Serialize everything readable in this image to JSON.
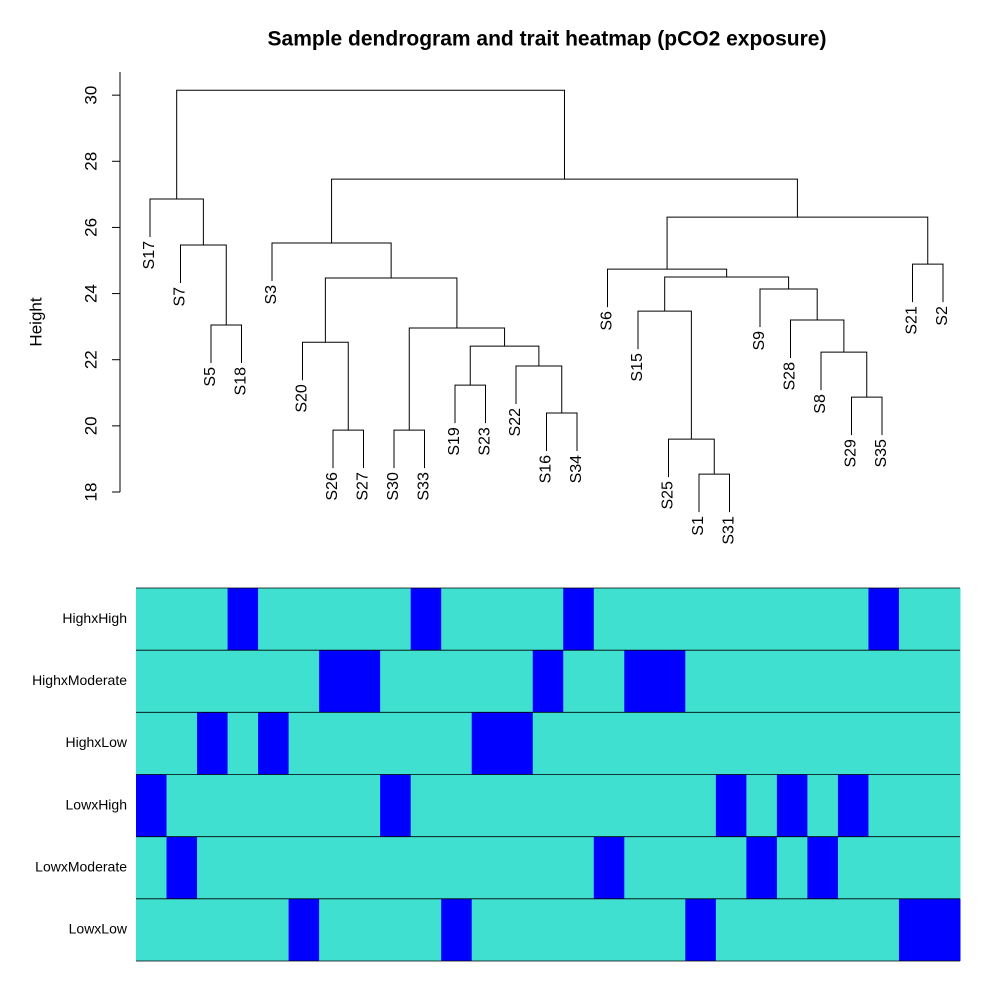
{
  "chart_data": [
    {
      "type": "dendrogram",
      "title": "Sample dendrogram and trait heatmap (pCO2 exposure)",
      "ylabel": "Height",
      "ylim": [
        18,
        30.7
      ],
      "yticks": [
        18,
        20,
        22,
        24,
        26,
        28,
        30
      ],
      "color": "#000000",
      "tree": {
        "height": 30.15,
        "children": [
          {
            "height": 26.86,
            "children": [
              {
                "label": "S17"
              },
              {
                "height": 25.47,
                "children": [
                  {
                    "label": "S7"
                  },
                  {
                    "height": 23.05,
                    "children": [
                      {
                        "label": "S5"
                      },
                      {
                        "label": "S18"
                      }
                    ]
                  }
                ]
              }
            ]
          },
          {
            "height": 27.46,
            "children": [
              {
                "height": 25.53,
                "children": [
                  {
                    "label": "S3"
                  },
                  {
                    "height": 24.47,
                    "children": [
                      {
                        "height": 22.53,
                        "children": [
                          {
                            "label": "S20"
                          },
                          {
                            "height": 19.87,
                            "children": [
                              {
                                "label": "S26"
                              },
                              {
                                "label": "S27"
                              }
                            ]
                          }
                        ]
                      },
                      {
                        "height": 22.96,
                        "children": [
                          {
                            "height": 19.87,
                            "children": [
                              {
                                "label": "S30"
                              },
                              {
                                "label": "S33"
                              }
                            ]
                          },
                          {
                            "height": 22.41,
                            "children": [
                              {
                                "height": 21.23,
                                "children": [
                                  {
                                    "label": "S19"
                                  },
                                  {
                                    "label": "S23"
                                  }
                                ]
                              },
                              {
                                "height": 21.81,
                                "children": [
                                  {
                                    "label": "S22"
                                  },
                                  {
                                    "height": 20.39,
                                    "children": [
                                      {
                                        "label": "S16"
                                      },
                                      {
                                        "label": "S34"
                                      }
                                    ]
                                  }
                                ]
                              }
                            ]
                          }
                        ]
                      }
                    ]
                  }
                ]
              },
              {
                "height": 26.31,
                "children": [
                  {
                    "height": 24.74,
                    "children": [
                      {
                        "label": "S6"
                      },
                      {
                        "height": 24.5,
                        "children": [
                          {
                            "height": 23.47,
                            "children": [
                              {
                                "label": "S15"
                              },
                              {
                                "height": 19.6,
                                "children": [
                                  {
                                    "label": "S25"
                                  },
                                  {
                                    "height": 18.54,
                                    "children": [
                                      {
                                        "label": "S1"
                                      },
                                      {
                                        "label": "S31"
                                      }
                                    ]
                                  }
                                ]
                              }
                            ]
                          },
                          {
                            "height": 24.14,
                            "children": [
                              {
                                "label": "S9"
                              },
                              {
                                "height": 23.2,
                                "children": [
                                  {
                                    "label": "S28"
                                  },
                                  {
                                    "height": 22.23,
                                    "children": [
                                      {
                                        "label": "S8"
                                      },
                                      {
                                        "height": 20.87,
                                        "children": [
                                          {
                                            "label": "S29"
                                          },
                                          {
                                            "label": "S35"
                                          }
                                        ]
                                      }
                                    ]
                                  }
                                ]
                              }
                            ]
                          }
                        ]
                      }
                    ]
                  },
                  {
                    "height": 24.89,
                    "children": [
                      {
                        "label": "S21"
                      },
                      {
                        "label": "S2"
                      }
                    ]
                  }
                ]
              }
            ]
          }
        ]
      }
    },
    {
      "type": "heatmap",
      "colors": [
        "#40E0D0",
        "#0000FF"
      ],
      "rows": [
        "HighxHigh",
        "HighxModerate",
        "HighxLow",
        "LowxHigh",
        "LowxModerate",
        "LowxLow"
      ],
      "values": [
        [
          0,
          0,
          0,
          1,
          0,
          0,
          0,
          0,
          0,
          1,
          0,
          0,
          0,
          0,
          1,
          0,
          0,
          0,
          0,
          0,
          0,
          0,
          0,
          0,
          1,
          0,
          0
        ],
        [
          0,
          0,
          0,
          0,
          0,
          0,
          1,
          1,
          0,
          0,
          0,
          0,
          0,
          1,
          0,
          0,
          1,
          1,
          0,
          0,
          0,
          0,
          0,
          0,
          0,
          0,
          0
        ],
        [
          0,
          0,
          1,
          0,
          1,
          0,
          0,
          0,
          0,
          0,
          0,
          1,
          1,
          0,
          0,
          0,
          0,
          0,
          0,
          0,
          0,
          0,
          0,
          0,
          0,
          0,
          0
        ],
        [
          1,
          0,
          0,
          0,
          0,
          0,
          0,
          0,
          1,
          0,
          0,
          0,
          0,
          0,
          0,
          0,
          0,
          0,
          0,
          1,
          0,
          1,
          0,
          1,
          0,
          0,
          0
        ],
        [
          0,
          1,
          0,
          0,
          0,
          0,
          0,
          0,
          0,
          0,
          0,
          0,
          0,
          0,
          0,
          1,
          0,
          0,
          0,
          0,
          1,
          0,
          1,
          0,
          0,
          0,
          0
        ],
        [
          0,
          0,
          0,
          0,
          0,
          1,
          0,
          0,
          0,
          0,
          1,
          0,
          0,
          0,
          0,
          0,
          0,
          0,
          1,
          0,
          0,
          0,
          0,
          0,
          0,
          1,
          1
        ]
      ]
    }
  ]
}
